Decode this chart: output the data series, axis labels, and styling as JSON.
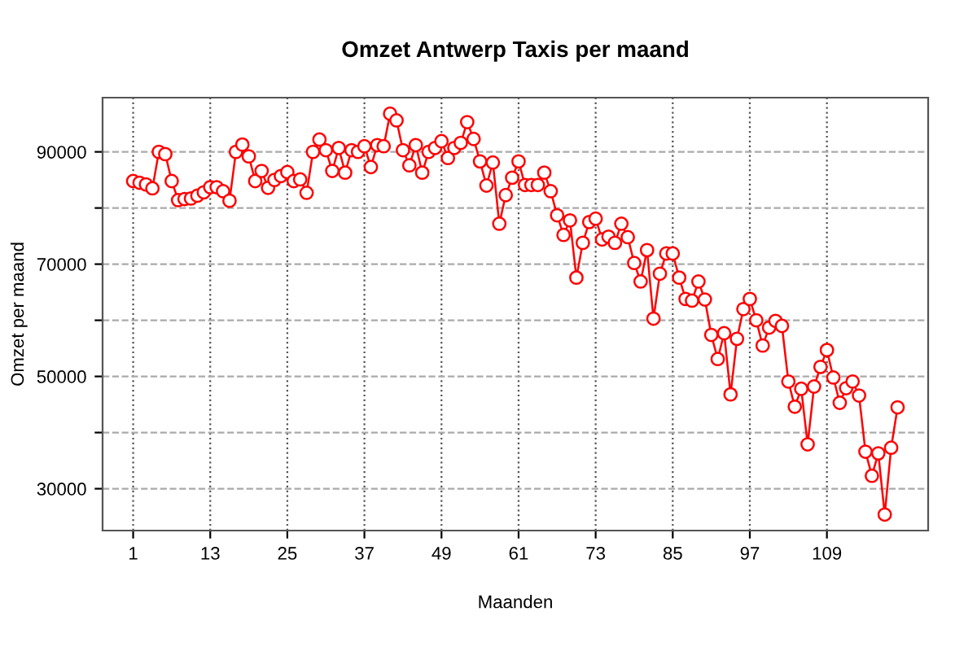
{
  "chart_data": {
    "type": "line",
    "title": "Omzet Antwerp Taxis per maand",
    "xlabel": "Maanden",
    "ylabel": "Omzet per maand",
    "x": [
      1,
      2,
      3,
      4,
      5,
      6,
      7,
      8,
      9,
      10,
      11,
      12,
      13,
      14,
      15,
      16,
      17,
      18,
      19,
      20,
      21,
      22,
      23,
      24,
      25,
      26,
      27,
      28,
      29,
      30,
      31,
      32,
      33,
      34,
      35,
      36,
      37,
      38,
      39,
      40,
      41,
      42,
      43,
      44,
      45,
      46,
      47,
      48,
      49,
      50,
      51,
      52,
      53,
      54,
      55,
      56,
      57,
      58,
      59,
      60,
      61,
      62,
      63,
      64,
      65,
      66,
      67,
      68,
      69,
      70,
      71,
      72,
      73,
      74,
      75,
      76,
      77,
      78,
      79,
      80,
      81,
      82,
      83,
      84,
      85,
      86,
      87,
      88,
      89,
      90,
      91,
      92,
      93,
      94,
      95,
      96,
      97,
      98,
      99,
      100,
      101,
      102,
      103,
      104,
      105,
      106,
      107,
      108,
      109,
      110,
      111,
      112,
      113,
      114,
      115,
      116,
      117,
      118,
      119,
      120
    ],
    "series": [
      {
        "color": "#ff0000",
        "values": [
          84800,
          84500,
          84200,
          83500,
          90000,
          89600,
          84800,
          81400,
          81600,
          81700,
          82200,
          82800,
          83700,
          83700,
          83000,
          81300,
          90000,
          91300,
          89200,
          84800,
          86600,
          83600,
          85000,
          85700,
          86400,
          84800,
          85100,
          82700,
          90000,
          92200,
          90300,
          86600,
          90700,
          86300,
          90300,
          90000,
          91000,
          87300,
          91200,
          91000,
          96800,
          95600,
          90300,
          87600,
          91200,
          86300,
          90000,
          90700,
          91900,
          88900,
          90700,
          91600,
          95300,
          92300,
          88300,
          84000,
          88100,
          77200,
          82300,
          85400,
          88300,
          84100,
          84100,
          84100,
          86300,
          83000,
          78700,
          75200,
          77800,
          67600,
          73800,
          77500,
          78100,
          74400,
          74900,
          73800,
          77200,
          74800,
          70200,
          66900,
          72500,
          60300,
          68300,
          71900,
          71900,
          67600,
          63800,
          63500,
          66900,
          63700,
          57400,
          53100,
          57700,
          46800,
          56700,
          62000,
          63800,
          60000,
          55500,
          58700,
          59900,
          59000,
          49100,
          44600,
          47800,
          37900,
          48200,
          51700,
          54700,
          49800,
          45300,
          47900,
          49100,
          46600,
          36600,
          32300,
          36300,
          25400,
          37300,
          44500
        ]
      }
    ],
    "xlim": [
      -3.76,
      124.76
    ],
    "ylim": [
      22544,
      99656
    ],
    "xticks": [
      1,
      13,
      25,
      37,
      49,
      61,
      73,
      85,
      97,
      109
    ],
    "yticks": [
      30000,
      {
        "value": 40000,
        "label": null
      },
      50000,
      {
        "value": 60000,
        "label": null
      },
      70000,
      {
        "value": 80000,
        "label": null
      },
      90000
    ],
    "grid": true,
    "marker": "circle",
    "line_style": "solid",
    "legend": false
  }
}
